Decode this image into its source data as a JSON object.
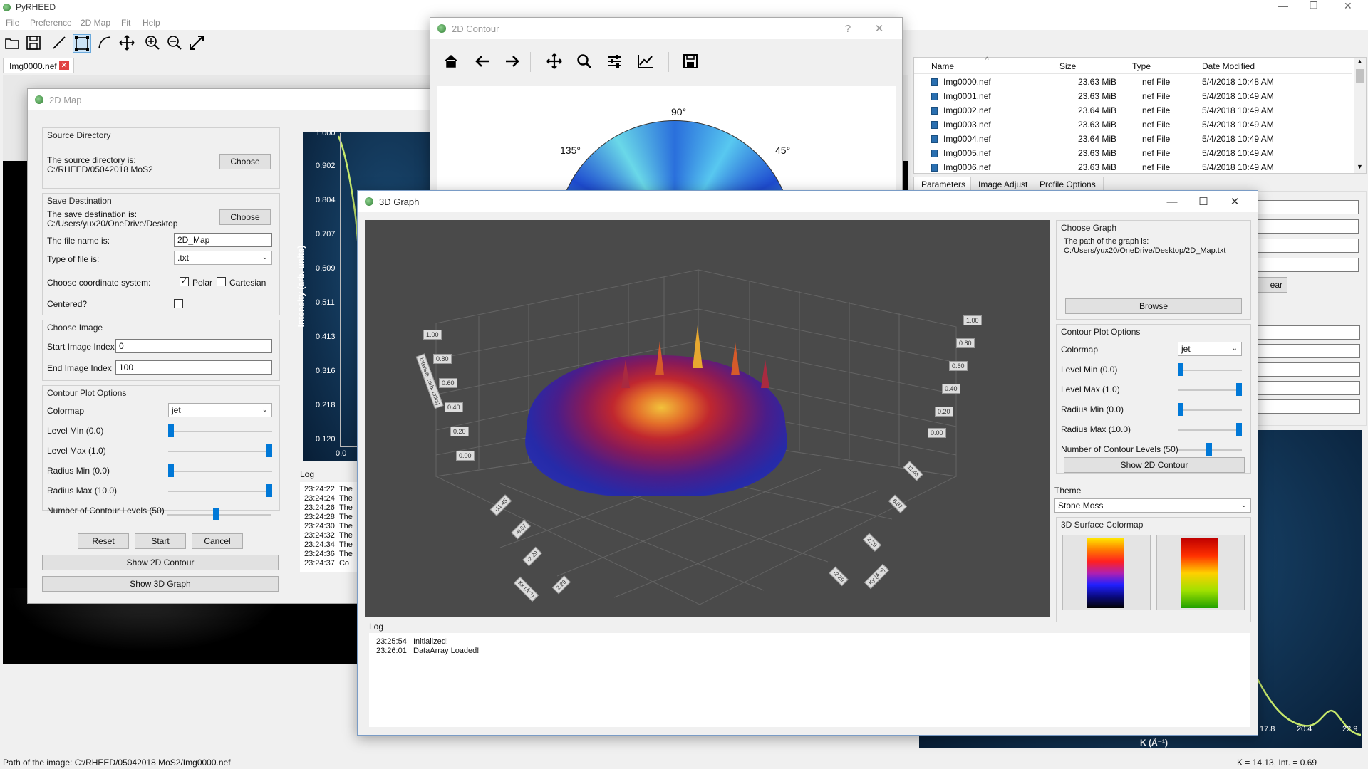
{
  "app": {
    "title": "PyRHEED",
    "menu": [
      "File",
      "Preference",
      "2D Map",
      "Fit",
      "Help"
    ],
    "toolbar_icons": [
      "open-folder-icon",
      "save-icon",
      "line-tool-icon",
      "rectangle-tool-icon",
      "arc-tool-icon",
      "move-icon",
      "zoom-in-icon",
      "zoom-out-icon",
      "fit-window-icon"
    ],
    "image_tab": "Img0000.nef",
    "status_left": "Path of the image: C:/RHEED/05042018 MoS2/Img0000.nef",
    "status_right": "K = 14.13, Int. = 0.69"
  },
  "browser": {
    "headers": [
      "Name",
      "Size",
      "Type",
      "Date Modified"
    ],
    "rows": [
      {
        "name": "Img0000.nef",
        "size": "23.63 MiB",
        "type": "nef File",
        "date": "5/4/2018 10:48 AM"
      },
      {
        "name": "Img0001.nef",
        "size": "23.63 MiB",
        "type": "nef File",
        "date": "5/4/2018 10:49 AM"
      },
      {
        "name": "Img0002.nef",
        "size": "23.64 MiB",
        "type": "nef File",
        "date": "5/4/2018 10:49 AM"
      },
      {
        "name": "Img0003.nef",
        "size": "23.63 MiB",
        "type": "nef File",
        "date": "5/4/2018 10:49 AM"
      },
      {
        "name": "Img0004.nef",
        "size": "23.64 MiB",
        "type": "nef File",
        "date": "5/4/2018 10:49 AM"
      },
      {
        "name": "Img0005.nef",
        "size": "23.63 MiB",
        "type": "nef File",
        "date": "5/4/2018 10:49 AM"
      },
      {
        "name": "Img0006.nef",
        "size": "23.63 MiB",
        "type": "nef File",
        "date": "5/4/2018 10:49 AM"
      }
    ],
    "tabs": [
      "Parameters",
      "Image Adjust",
      "Profile Options"
    ],
    "clear_partial": "ear"
  },
  "profile_plot": {
    "x_ticks": [
      "17.8",
      "20.4",
      "22.9"
    ],
    "xlabel": "K (Å⁻¹)"
  },
  "map2d": {
    "title": "2D Map",
    "source": {
      "title": "Source Directory",
      "label": "The source directory is:",
      "path": "C:/RHEED/05042018 MoS2",
      "choose": "Choose"
    },
    "save": {
      "title": "Save Destination",
      "label": "The save destination is:",
      "path": "C:/Users/yux20/OneDrive/Desktop",
      "choose": "Choose",
      "filename_label": "The file name is:",
      "filename": "2D_Map",
      "filetype_label": "Type of file is:",
      "filetype": ".txt",
      "coord_label": "Choose coordinate system:",
      "polar": "Polar",
      "cartesian": "Cartesian",
      "centered_label": "Centered?"
    },
    "image": {
      "title": "Choose Image",
      "start_label": "Start Image Index",
      "start": "0",
      "end_label": "End Image Index",
      "end": "100"
    },
    "contour": {
      "title": "Contour Plot Options",
      "colormap_label": "Colormap",
      "colormap": "jet",
      "level_min": "Level Min (0.0)",
      "level_max": "Level Max (1.0)",
      "radius_min": "Radius Min (0.0)",
      "radius_max": "Radius Max (10.0)",
      "levels": "Number of Contour Levels (50)"
    },
    "buttons": {
      "reset": "Reset",
      "start": "Start",
      "cancel": "Cancel",
      "show_contour": "Show 2D Contour",
      "show_3d": "Show 3D Graph"
    },
    "chart": {
      "y_ticks": [
        "1.000",
        "0.902",
        "0.804",
        "0.707",
        "0.609",
        "0.511",
        "0.413",
        "0.316",
        "0.218",
        "0.120"
      ],
      "x_tick": "0.0",
      "ylabel": "Intensity (arb. units)"
    },
    "log": {
      "title": "Log",
      "lines": [
        {
          "time": "23:24:22",
          "text": "The"
        },
        {
          "time": "23:24:24",
          "text": "The"
        },
        {
          "time": "23:24:26",
          "text": "The"
        },
        {
          "time": "23:24:28",
          "text": "The"
        },
        {
          "time": "23:24:30",
          "text": "The"
        },
        {
          "time": "23:24:32",
          "text": "The"
        },
        {
          "time": "23:24:34",
          "text": "The"
        },
        {
          "time": "23:24:36",
          "text": "The"
        },
        {
          "time": "23:24:37",
          "text": "Co"
        }
      ]
    }
  },
  "contour": {
    "title": "2D Contour",
    "help": "?",
    "angles": {
      "a90": "90°",
      "a135": "135°",
      "a45": "45°"
    },
    "toolbar_icons": [
      "home-icon",
      "back-arrow-icon",
      "forward-arrow-icon",
      "pan-icon",
      "zoom-icon",
      "configure-icon",
      "edit-curve-icon",
      "save-icon"
    ]
  },
  "graph3d": {
    "title": "3D Graph",
    "choose": {
      "title": "Choose Graph",
      "label": "The path of the graph is:",
      "path": "C:/Users/yux20/OneDrive/Desktop/2D_Map.txt",
      "browse": "Browse"
    },
    "contour": {
      "title": "Contour Plot Options",
      "colormap_label": "Colormap",
      "colormap": "jet",
      "level_min": "Level Min (0.0)",
      "level_max": "Level Max (1.0)",
      "radius_min": "Radius Min (0.0)",
      "radius_max": "Radius Max (10.0)",
      "levels": "Number of Contour Levels (50)",
      "show_contour": "Show 2D Contour"
    },
    "theme": {
      "label": "Theme",
      "value": "Stone Moss"
    },
    "colormap": {
      "title": "3D Surface Colormap"
    },
    "axis": {
      "z_left": [
        "1.00",
        "0.80",
        "0.60",
        "0.40",
        "0.20",
        "0.00"
      ],
      "z_right": [
        "1.00",
        "0.80",
        "0.60",
        "0.40",
        "0.20",
        "0.00"
      ],
      "x_left": [
        "-11.45",
        "-6.87",
        "-2.29",
        "2.29"
      ],
      "x_right": [
        "11.45",
        "6.87",
        "2.29",
        "-2.29"
      ],
      "z_title": "Intensity (arb. units)",
      "kx": "Kx (Å⁻¹)",
      "ky": "Ky (Å⁻¹)"
    },
    "log": {
      "title": "Log",
      "lines": [
        {
          "time": "23:25:54",
          "text": "Initialized!"
        },
        {
          "time": "23:26:01",
          "text": "DataArray Loaded!"
        }
      ]
    }
  },
  "colors": {
    "accent": "#0078d7",
    "plot_bg": "#4a4a4a",
    "profile_bg": "#0c2a48"
  }
}
